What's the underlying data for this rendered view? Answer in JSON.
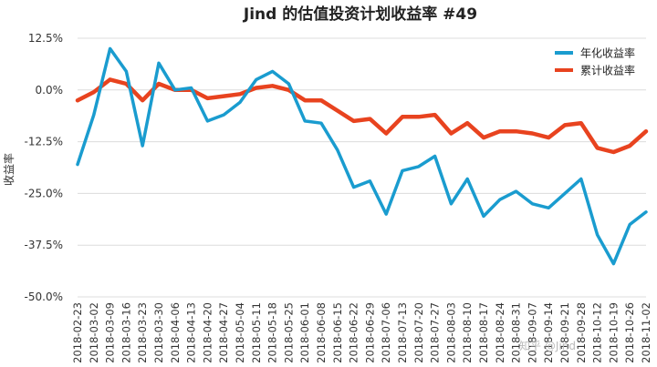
{
  "chart_data": {
    "type": "line",
    "title": "Jind 的估值投资计划收益率 #49",
    "xlabel": "",
    "ylabel": "收益率",
    "ylim": [
      -50,
      12.5
    ],
    "yticks": [
      12.5,
      0,
      -12.5,
      -25,
      -37.5,
      -50
    ],
    "ytick_labels": [
      "12.5%",
      "0.0%",
      "-12.5%",
      "-25.0%",
      "-37.5%",
      "-50.0%"
    ],
    "grid": "horizontal",
    "legend_position": "top-right",
    "x": [
      "2018-02-23",
      "2018-03-02",
      "2018-03-09",
      "2018-03-16",
      "2018-03-23",
      "2018-03-30",
      "2018-04-06",
      "2018-04-13",
      "2018-04-20",
      "2018-04-27",
      "2018-05-04",
      "2018-05-11",
      "2018-05-18",
      "2018-05-25",
      "2018-06-01",
      "2018-06-08",
      "2018-06-15",
      "2018-06-22",
      "2018-06-29",
      "2018-07-06",
      "2018-07-13",
      "2018-07-20",
      "2018-07-27",
      "2018-08-03",
      "2018-08-10",
      "2018-08-17",
      "2018-08-24",
      "2018-08-31",
      "2018-09-07",
      "2018-09-14",
      "2018-09-21",
      "2018-09-28",
      "2018-10-12",
      "2018-10-19",
      "2018-10-26",
      "2018-11-02"
    ],
    "xtick_labels": [
      "2018-02-23",
      "2018-03-02",
      "2018-03-09",
      "2018-03-16",
      "2018-03-23",
      "2018-03-30",
      "2018-04-06",
      "2018-04-13",
      "2018-04-20",
      "2018-04-27",
      "2018-05-04",
      "2018-05-11",
      "2018-05-18",
      "2018-05-25",
      "2018-06-01",
      "2018-06-08",
      "2018-06-15",
      "2018-06-22",
      "2018-06-29",
      "2018-07-06",
      "2018-07-13",
      "2018-07-20",
      "2018-07-27",
      "2018-08-03",
      "2018-08-10",
      "2018-08-17",
      "2018-08-24",
      "2018-08-31",
      "2018-09-07",
      "2018-09-14",
      "2018-09-21",
      "2018-09-28",
      "2018-10-12",
      "2018-10-19",
      "2018-10-26",
      "2018-11-02"
    ],
    "series": [
      {
        "name": "年化收益率",
        "color": "#1a9ccf",
        "values": [
          -18.0,
          -6.0,
          10.0,
          4.5,
          -13.5,
          6.5,
          0.0,
          0.5,
          -7.5,
          -6.0,
          -3.0,
          2.5,
          4.5,
          1.5,
          -7.5,
          -8.0,
          -14.5,
          -23.5,
          -22.0,
          -30.0,
          -19.5,
          -18.5,
          -16.0,
          -27.5,
          -21.5,
          -30.5,
          -26.5,
          -24.5,
          -27.5,
          -28.5,
          -25.0,
          -21.5,
          -35.0,
          -42.0,
          -32.5,
          -29.5
        ]
      },
      {
        "name": "累计收益率",
        "color": "#e8431f",
        "values": [
          -2.5,
          -0.5,
          2.5,
          1.5,
          -2.5,
          1.5,
          0.0,
          0.0,
          -2.0,
          -1.5,
          -1.0,
          0.5,
          1.0,
          0.0,
          -2.5,
          -2.5,
          -5.0,
          -7.5,
          -7.0,
          -10.5,
          -6.5,
          -6.5,
          -6.0,
          -10.5,
          -8.0,
          -11.5,
          -10.0,
          -10.0,
          -10.5,
          -11.5,
          -8.5,
          -8.0,
          -14.0,
          -15.0,
          -13.5,
          -10.0
        ]
      }
    ]
  },
  "watermark": "知乎 @Jind"
}
